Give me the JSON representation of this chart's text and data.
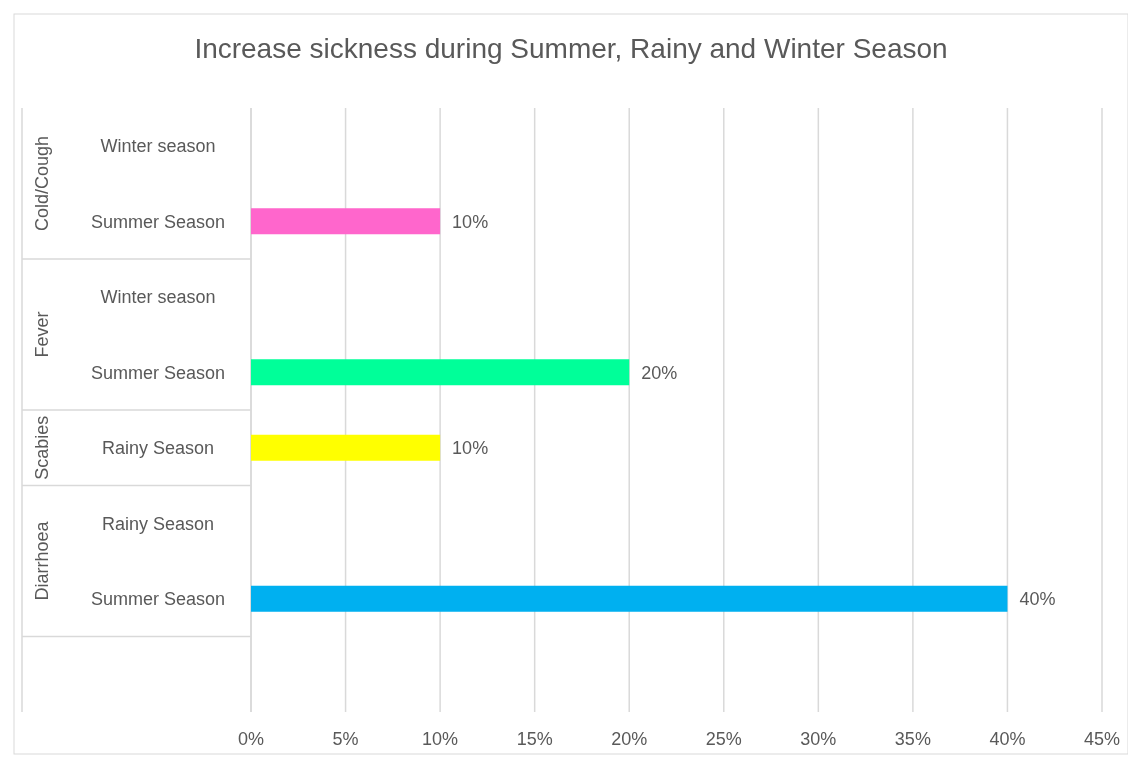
{
  "chart_data": {
    "type": "bar",
    "orientation": "horizontal",
    "title": "Increase sickness during Summer, Rainy and Winter Season",
    "categories": [
      "Winter season",
      "Summer Season",
      "Winter season",
      "Summer Season",
      "Rainy Season",
      "Rainy Season",
      "Summer Season",
      null
    ],
    "values": [
      null,
      10,
      null,
      20,
      10,
      null,
      40,
      null
    ],
    "colors": [
      null,
      "#ff66cc",
      null,
      "#00ff99",
      "#ffff00",
      null,
      "#00b0f0",
      null
    ],
    "value_labels": [
      null,
      "10%",
      null,
      "20%",
      "10%",
      null,
      "40%",
      null
    ],
    "annotations": [
      "Cold/Cough",
      "Fever",
      "Scabies",
      "Diarrhoea"
    ],
    "xlim": [
      0,
      45
    ],
    "xticks": [
      {
        "value": 0,
        "label": "0%"
      },
      {
        "value": 5,
        "label": "5%"
      },
      {
        "value": 10,
        "label": "10%"
      },
      {
        "value": 15,
        "label": "15%"
      },
      {
        "value": 20,
        "label": "20%"
      },
      {
        "value": 25,
        "label": "25%"
      },
      {
        "value": 30,
        "label": "30%"
      },
      {
        "value": 35,
        "label": "35%"
      },
      {
        "value": 40,
        "label": "40%"
      },
      {
        "value": 45,
        "label": "45%"
      }
    ],
    "grid": "x"
  }
}
